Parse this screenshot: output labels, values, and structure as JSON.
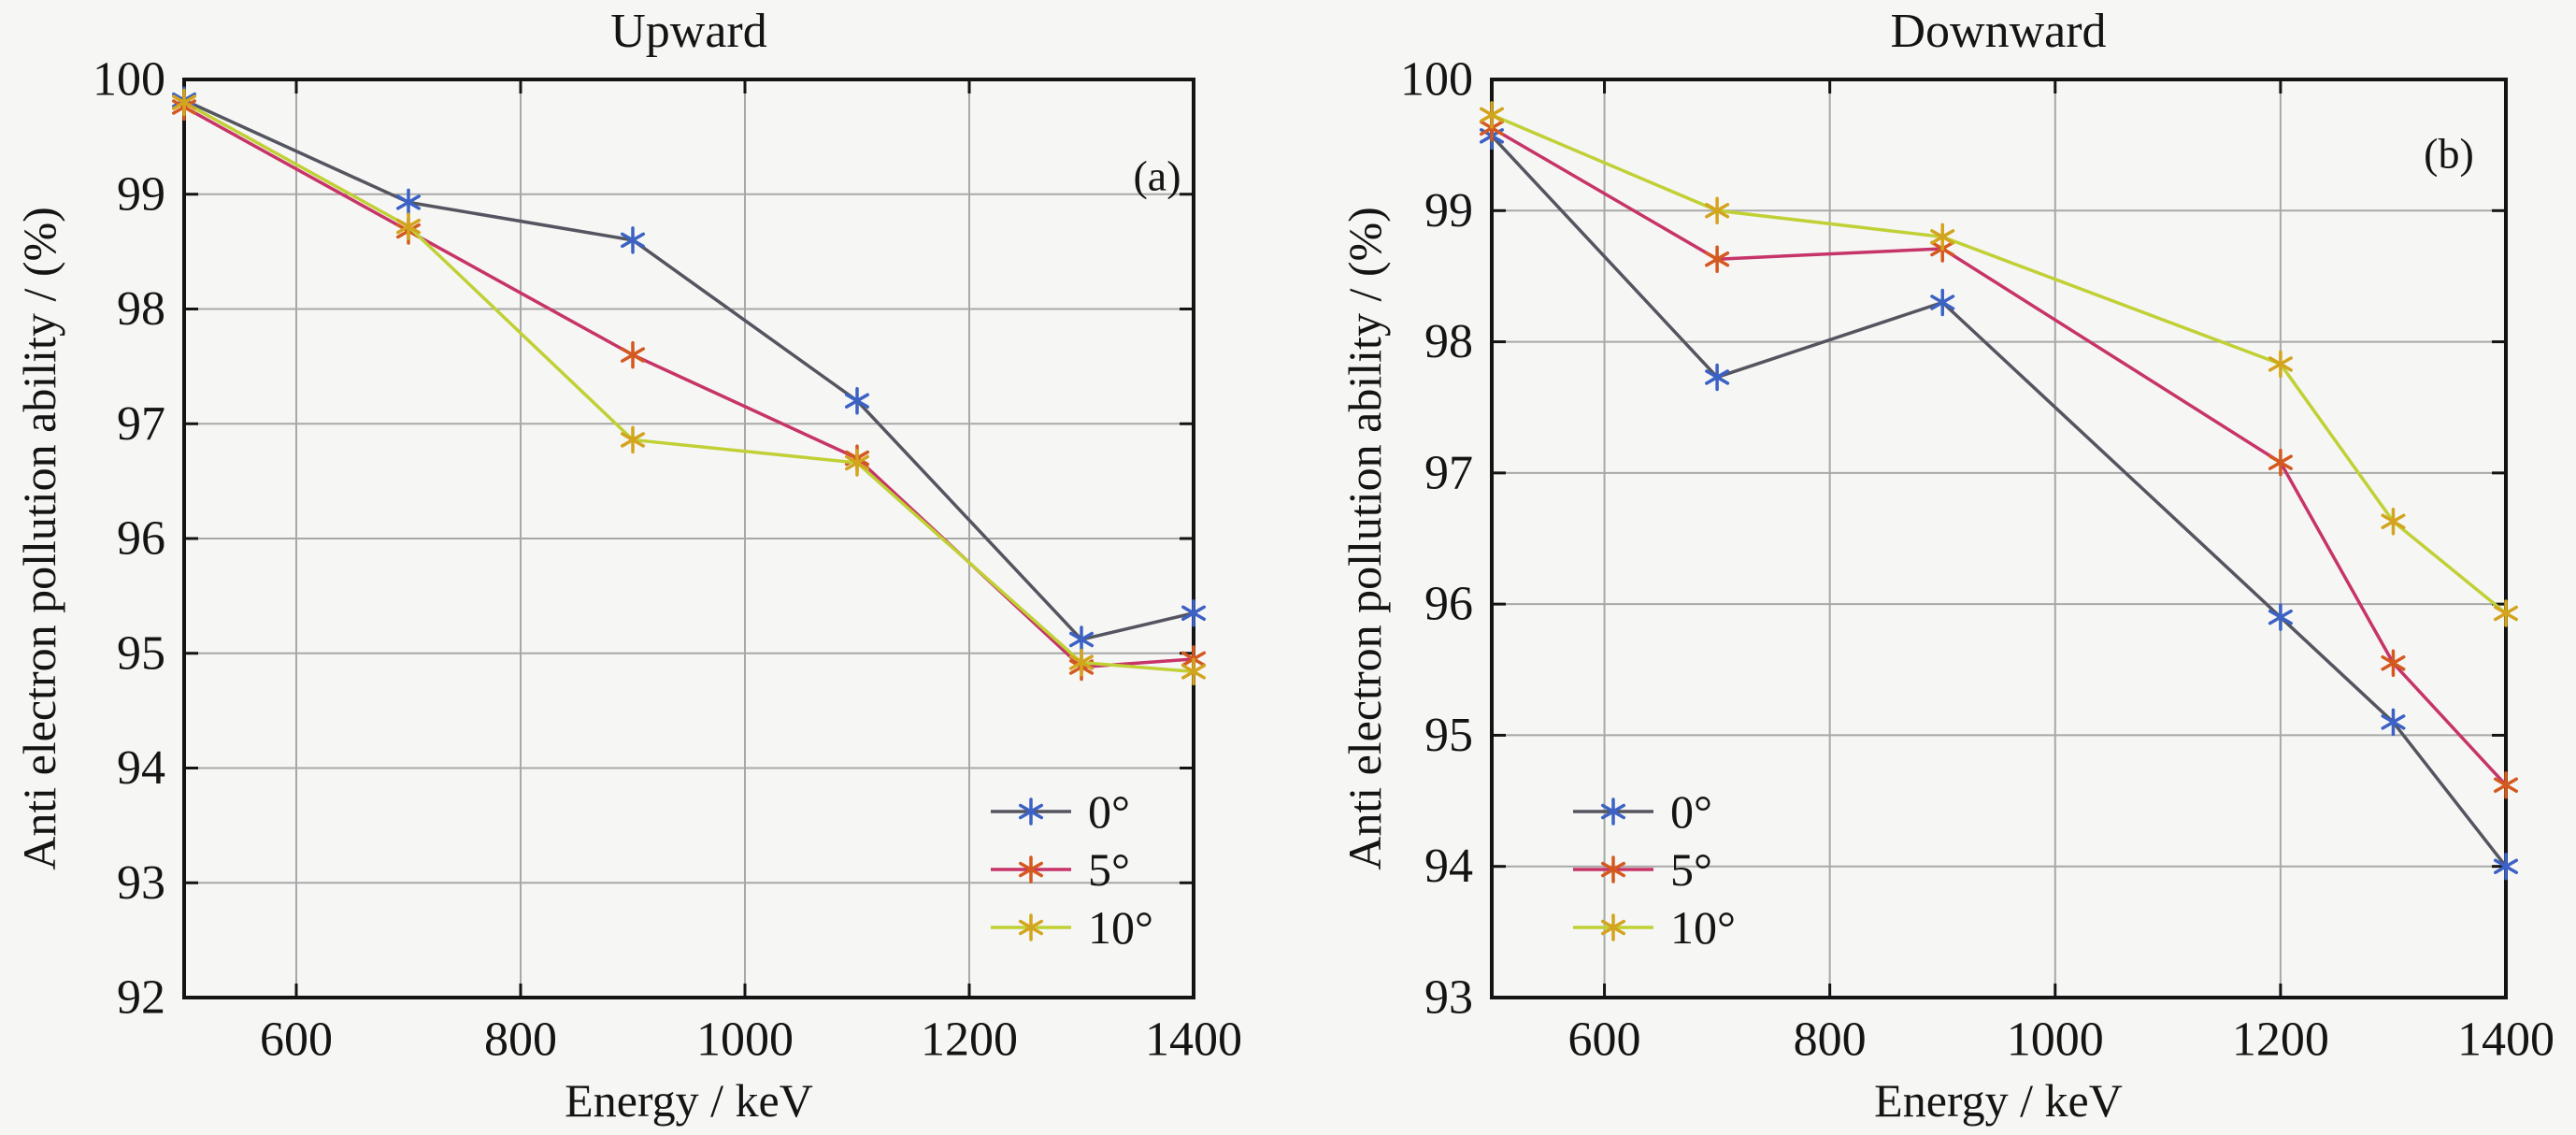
{
  "figure": {
    "background_color": "#f6f6f5",
    "text_color": "#141414",
    "axis_color": "#141414",
    "grid_color": "#a8a8a8"
  },
  "charts": [
    {
      "title": "Upward",
      "corner_label": "(a)",
      "xlabel": "Energy / keV",
      "ylabel": "Anti electron pollution ability / (%)",
      "chart_data": {
        "type": "line",
        "x": [
          500,
          700,
          900,
          1100,
          1300,
          1400
        ],
        "series": [
          {
            "name": "0°",
            "values": [
              99.82,
              98.93,
              98.6,
              97.2,
              95.12,
              95.35
            ],
            "line_color": "#54555f",
            "marker_color": "#3b62c4"
          },
          {
            "name": "5°",
            "values": [
              99.76,
              98.68,
              97.6,
              96.7,
              94.88,
              94.95
            ],
            "line_color": "#c73468",
            "marker_color": "#d4591f"
          },
          {
            "name": "10°",
            "values": [
              99.8,
              98.72,
              96.86,
              96.66,
              94.92,
              94.84
            ],
            "line_color": "#c0d035",
            "marker_color": "#d3a41d"
          }
        ],
        "xlim": [
          500,
          1400
        ],
        "ylim": [
          92,
          100
        ],
        "xticks": [
          600,
          800,
          1000,
          1200,
          1400
        ],
        "yticks": [
          92,
          93,
          94,
          95,
          96,
          97,
          98,
          99,
          100
        ],
        "grid": true,
        "marker": "asterisk",
        "legend_position": "inside-right-bottom"
      }
    },
    {
      "title": "Downward",
      "corner_label": "(b)",
      "xlabel": "Energy / keV",
      "ylabel": "Anti electron pollution ability / (%)",
      "chart_data": {
        "type": "line",
        "x": [
          500,
          700,
          900,
          1200,
          1300,
          1400
        ],
        "series": [
          {
            "name": "0°",
            "values": [
              99.57,
              97.73,
              98.3,
              95.9,
              95.1,
              94.0
            ],
            "line_color": "#54555f",
            "marker_color": "#3b62c4"
          },
          {
            "name": "5°",
            "values": [
              99.63,
              98.63,
              98.71,
              97.08,
              95.55,
              94.62
            ],
            "line_color": "#c73468",
            "marker_color": "#d4591f"
          },
          {
            "name": "10°",
            "values": [
              99.73,
              99.0,
              98.8,
              97.83,
              96.63,
              95.93
            ],
            "line_color": "#c0d035",
            "marker_color": "#d3a41d"
          }
        ],
        "xlim": [
          500,
          1400
        ],
        "ylim": [
          93,
          100
        ],
        "xticks": [
          600,
          800,
          1000,
          1200,
          1400
        ],
        "yticks": [
          93,
          94,
          95,
          96,
          97,
          98,
          99,
          100
        ],
        "grid": true,
        "marker": "asterisk",
        "legend_position": "inside-left-bottom"
      }
    }
  ]
}
